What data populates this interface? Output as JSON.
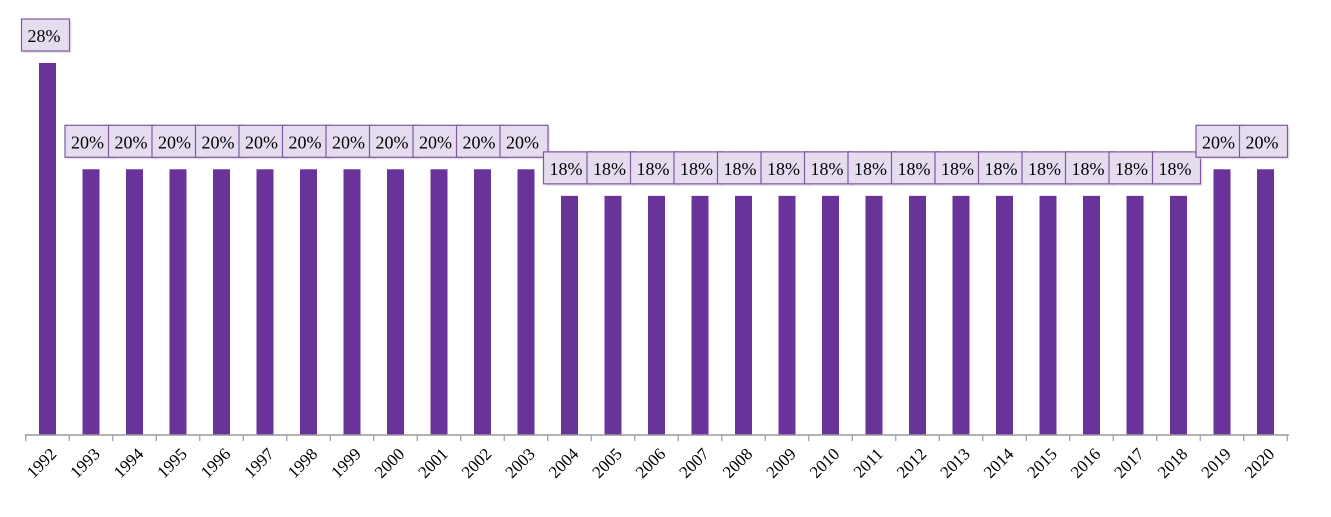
{
  "chart_data": {
    "type": "bar",
    "categories": [
      "1992",
      "1993",
      "1994",
      "1995",
      "1996",
      "1997",
      "1998",
      "1999",
      "2000",
      "2001",
      "2002",
      "2003",
      "2004",
      "2005",
      "2006",
      "2007",
      "2008",
      "2009",
      "2010",
      "2011",
      "2012",
      "2013",
      "2014",
      "2015",
      "2016",
      "2017",
      "2018",
      "2019",
      "2020"
    ],
    "values": [
      28,
      20,
      20,
      20,
      20,
      20,
      20,
      20,
      20,
      20,
      20,
      20,
      18,
      18,
      18,
      18,
      18,
      18,
      18,
      18,
      18,
      18,
      18,
      18,
      18,
      18,
      18,
      20,
      20
    ],
    "data_labels": [
      "28%",
      "20%",
      "20%",
      "20%",
      "20%",
      "20%",
      "20%",
      "20%",
      "20%",
      "20%",
      "20%",
      "20%",
      "18%",
      "18%",
      "18%",
      "18%",
      "18%",
      "18%",
      "18%",
      "18%",
      "18%",
      "18%",
      "18%",
      "18%",
      "18%",
      "18%",
      "18%",
      "20%",
      "20%"
    ],
    "title": "",
    "xlabel": "",
    "ylabel": "",
    "ylim": [
      0,
      28
    ],
    "grid": false,
    "legend": "none",
    "colors": {
      "bar": "#6a3399",
      "label_fill": "#e6dcf0",
      "label_border": "#7d5a9c",
      "axis": "#9a9a9a"
    }
  }
}
